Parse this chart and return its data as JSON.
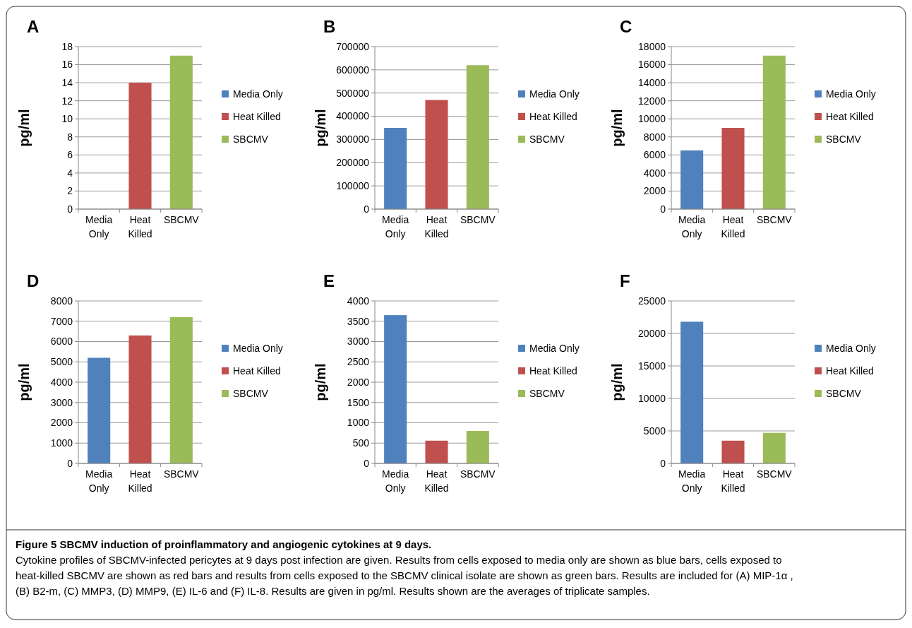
{
  "chart_data": [
    {
      "type": "bar",
      "title": "A",
      "ylabel": "pg/ml",
      "categories": [
        "Media Only",
        "Heat Killed",
        "SBCMV"
      ],
      "stacked": true,
      "series": [
        {
          "name": "Media Only",
          "color": "#4f81bd",
          "values": [
            0,
            null,
            null
          ]
        },
        {
          "name": "Heat Killed",
          "color": "#c0504d",
          "values": [
            null,
            14,
            null
          ]
        },
        {
          "name": "SBCMV",
          "color": "#9bbb59",
          "values": [
            null,
            null,
            17
          ]
        }
      ],
      "ylim": [
        0,
        18
      ],
      "yticks": [
        0,
        2,
        4,
        6,
        8,
        10,
        12,
        14,
        16,
        18
      ],
      "grid": "y",
      "legend": "right"
    },
    {
      "type": "bar",
      "title": "B",
      "ylabel": "pg/ml",
      "categories": [
        "Media Only",
        "Heat Killed",
        "SBCMV"
      ],
      "stacked": true,
      "series": [
        {
          "name": "Media Only",
          "color": "#4f81bd",
          "values": [
            350000,
            null,
            null
          ]
        },
        {
          "name": "Heat Killed",
          "color": "#c0504d",
          "values": [
            null,
            470000,
            null
          ]
        },
        {
          "name": "SBCMV",
          "color": "#9bbb59",
          "values": [
            null,
            null,
            620000
          ]
        }
      ],
      "ylim": [
        0,
        700000
      ],
      "yticks": [
        0,
        100000,
        200000,
        300000,
        400000,
        500000,
        600000,
        700000
      ],
      "grid": "y",
      "legend": "right"
    },
    {
      "type": "bar",
      "title": "C",
      "ylabel": "pg/ml",
      "categories": [
        "Media Only",
        "Heat Killed",
        "SBCMV"
      ],
      "stacked": true,
      "series": [
        {
          "name": "Media Only",
          "color": "#4f81bd",
          "values": [
            6500,
            null,
            null
          ]
        },
        {
          "name": "Heat Killed",
          "color": "#c0504d",
          "values": [
            null,
            9000,
            null
          ]
        },
        {
          "name": "SBCMV",
          "color": "#9bbb59",
          "values": [
            null,
            null,
            17000
          ]
        }
      ],
      "ylim": [
        0,
        18000
      ],
      "yticks": [
        0,
        2000,
        4000,
        6000,
        8000,
        10000,
        12000,
        14000,
        16000,
        18000
      ],
      "grid": "y",
      "legend": "right"
    },
    {
      "type": "bar",
      "title": "D",
      "ylabel": "pg/ml",
      "categories": [
        "Media Only",
        "Heat Killed",
        "SBCMV"
      ],
      "stacked": true,
      "series": [
        {
          "name": "Media Only",
          "color": "#4f81bd",
          "values": [
            5200,
            null,
            null
          ]
        },
        {
          "name": "Heat Killed",
          "color": "#c0504d",
          "values": [
            null,
            6300,
            null
          ]
        },
        {
          "name": "SBCMV",
          "color": "#9bbb59",
          "values": [
            null,
            null,
            7200
          ]
        }
      ],
      "ylim": [
        0,
        8000
      ],
      "yticks": [
        0,
        1000,
        2000,
        3000,
        4000,
        5000,
        6000,
        7000,
        8000
      ],
      "grid": "y",
      "legend": "right"
    },
    {
      "type": "bar",
      "title": "E",
      "ylabel": "pg/ml",
      "categories": [
        "Media Only",
        "Heat Killed",
        "SBCMV"
      ],
      "stacked": true,
      "series": [
        {
          "name": "Media Only",
          "color": "#4f81bd",
          "values": [
            3650,
            null,
            null
          ]
        },
        {
          "name": "Heat Killed",
          "color": "#c0504d",
          "values": [
            null,
            560,
            null
          ]
        },
        {
          "name": "SBCMV",
          "color": "#9bbb59",
          "values": [
            null,
            null,
            800
          ]
        }
      ],
      "ylim": [
        0,
        4000
      ],
      "yticks": [
        0,
        500,
        1000,
        1500,
        2000,
        2500,
        3000,
        3500,
        4000
      ],
      "grid": "y",
      "legend": "right"
    },
    {
      "type": "bar",
      "title": "F",
      "ylabel": "pg/ml",
      "categories": [
        "Media Only",
        "Heat Killed",
        "SBCMV"
      ],
      "stacked": true,
      "series": [
        {
          "name": "Media Only",
          "color": "#4f81bd",
          "values": [
            21800,
            null,
            null
          ]
        },
        {
          "name": "Heat Killed",
          "color": "#c0504d",
          "values": [
            null,
            3500,
            null
          ]
        },
        {
          "name": "SBCMV",
          "color": "#9bbb59",
          "values": [
            null,
            null,
            4700
          ]
        }
      ],
      "ylim": [
        0,
        25000
      ],
      "yticks": [
        0,
        5000,
        10000,
        15000,
        20000,
        25000
      ],
      "grid": "y",
      "legend": "right",
      "annotations": [
        "Figure 5 SBCMV induction of proinflammatory and angiogenic cytokines at 9 days.",
        "Cytokine profiles of SBCMV-infected pericytes at 9 days post infection are given. Results from cells exposed to media only are shown as blue bars, cells exposed to heat-killed SBCMV are shown as red bars and results from cells exposed to the SBCMV clinical isolate are shown as green bars. Results are included for (A) MIP-1α , (B) B2-m, (C) MMP3, (D) MMP9, (E) IL-6 and (F) IL-8. Results are given in pg/ml. Results shown are the averages of triplicate samples."
      ]
    }
  ]
}
